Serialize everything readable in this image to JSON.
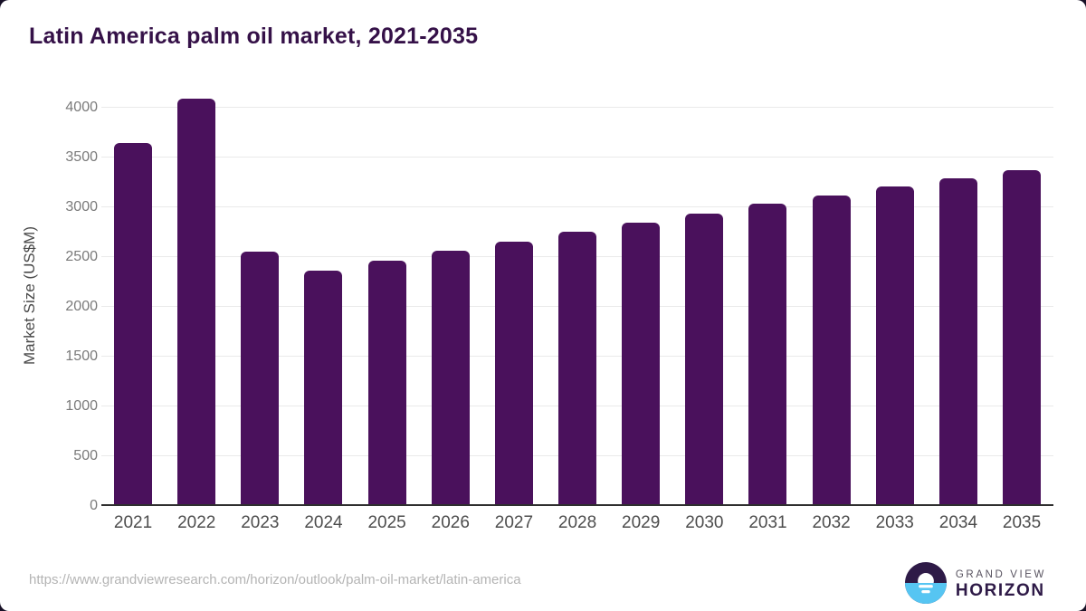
{
  "card": {
    "title": "Latin America palm oil market, 2021-2035"
  },
  "chart_data": {
    "type": "bar",
    "title": "Latin America palm oil market, 2021-2035",
    "xlabel": "",
    "ylabel": "Market Size (US$M)",
    "categories": [
      "2021",
      "2022",
      "2023",
      "2024",
      "2025",
      "2026",
      "2027",
      "2028",
      "2029",
      "2030",
      "2031",
      "2032",
      "2033",
      "2034",
      "2035"
    ],
    "values": [
      3645,
      4095,
      2555,
      2365,
      2465,
      2565,
      2655,
      2755,
      2850,
      2940,
      3040,
      3120,
      3210,
      3290,
      3375
    ],
    "yticks": [
      0,
      500,
      1000,
      1500,
      2000,
      2500,
      3000,
      3500,
      4000
    ],
    "ylim": [
      0,
      4000
    ],
    "grid": "horizontal",
    "legend": "none",
    "bar_color": "#4a115c",
    "gridline_color": "#eaeaea",
    "axis_line_color": "#2f2f2f",
    "title_color": "#351148"
  },
  "footer": {
    "source_url": "https://www.grandviewresearch.com/horizon/outlook/palm-oil-market/latin-america",
    "logo": {
      "line1": "GRAND VIEW",
      "line2": "HORIZON",
      "icon_top_color": "#2e1a47",
      "icon_bottom_color": "#56c5f2"
    }
  }
}
